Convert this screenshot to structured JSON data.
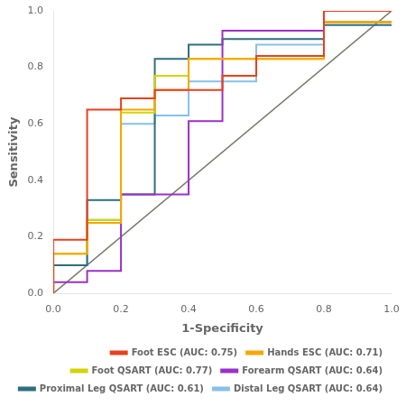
{
  "chart_data": {
    "type": "line",
    "xlabel": "1-Specificity",
    "ylabel": "Sensitivity",
    "series": [
      {
        "color": "#7a7a6a",
        "x": [
          0,
          1
        ],
        "values": [
          0,
          1
        ]
      },
      {
        "name": "Foot ESC (AUC: 0.75)",
        "color": "#e8401c",
        "x": [
          0.0,
          0.0,
          0.1,
          0.1,
          0.2,
          0.2,
          0.3,
          0.3,
          0.5,
          0.5,
          0.6,
          0.6,
          0.8,
          0.8,
          1.0
        ],
        "values": [
          0.0,
          0.19,
          0.19,
          0.65,
          0.65,
          0.69,
          0.69,
          0.72,
          0.72,
          0.77,
          0.77,
          0.84,
          0.84,
          1.0,
          1.0
        ]
      },
      {
        "name": "Hands ESC (AUC: 0.71)",
        "color": "#f5a800",
        "x": [
          0.0,
          0.0,
          0.1,
          0.1,
          0.2,
          0.2,
          0.3,
          0.3,
          0.4,
          0.4,
          0.8,
          0.8,
          1.0
        ],
        "values": [
          0.0,
          0.14,
          0.14,
          0.25,
          0.25,
          0.65,
          0.65,
          0.72,
          0.72,
          0.83,
          0.83,
          0.96,
          0.96
        ]
      },
      {
        "name": "Foot QSART (AUC: 0.77)",
        "color": "#d4d400",
        "x": [
          0.0,
          0.0,
          0.1,
          0.1,
          0.2,
          0.2,
          0.3,
          0.3,
          0.4,
          0.4,
          0.8,
          0.8,
          1.0
        ],
        "values": [
          0.0,
          0.14,
          0.14,
          0.26,
          0.26,
          0.64,
          0.64,
          0.77,
          0.77,
          0.83,
          0.83,
          0.96,
          0.96
        ]
      },
      {
        "name": "Forearm QSART (AUC: 0.64)",
        "color": "#9b30c8",
        "x": [
          0.0,
          0.0,
          0.1,
          0.1,
          0.2,
          0.2,
          0.4,
          0.4,
          0.5,
          0.5,
          0.8,
          0.8,
          1.0
        ],
        "values": [
          0.0,
          0.04,
          0.04,
          0.08,
          0.08,
          0.35,
          0.35,
          0.61,
          0.61,
          0.93,
          0.93,
          0.96,
          0.96
        ]
      },
      {
        "name": "Proximal Leg QSART (AUC: 0.61)",
        "color": "#2e6e7e",
        "x": [
          0.0,
          0.0,
          0.1,
          0.1,
          0.2,
          0.2,
          0.3,
          0.3,
          0.4,
          0.4,
          0.5,
          0.5,
          0.8,
          0.8,
          1.0
        ],
        "values": [
          0.0,
          0.1,
          0.1,
          0.33,
          0.33,
          0.35,
          0.35,
          0.83,
          0.83,
          0.88,
          0.88,
          0.9,
          0.9,
          0.95,
          0.95
        ]
      },
      {
        "name": "Distal Leg QSART (AUC: 0.64)",
        "color": "#88c0e8",
        "x": [
          0.0,
          0.0,
          0.1,
          0.1,
          0.2,
          0.2,
          0.3,
          0.3,
          0.4,
          0.4,
          0.6,
          0.6,
          0.8,
          0.8,
          1.0
        ],
        "values": [
          0.0,
          0.1,
          0.1,
          0.26,
          0.26,
          0.6,
          0.6,
          0.63,
          0.63,
          0.75,
          0.75,
          0.88,
          0.88,
          0.96,
          0.96
        ]
      }
    ],
    "xlim": [
      0.0,
      1.0
    ],
    "ylim": [
      0.0,
      1.0
    ],
    "xticks": [
      {
        "value": 0,
        "label": "0.0"
      },
      0.2,
      0.4,
      0.6,
      0.8,
      {
        "value": 1,
        "label": "1.0"
      }
    ],
    "yticks": [
      {
        "value": 0,
        "label": "0.0"
      },
      0.2,
      0.4,
      0.6,
      0.8,
      {
        "value": 1,
        "label": "1.0"
      }
    ],
    "grid": false,
    "legend": "lower right"
  }
}
